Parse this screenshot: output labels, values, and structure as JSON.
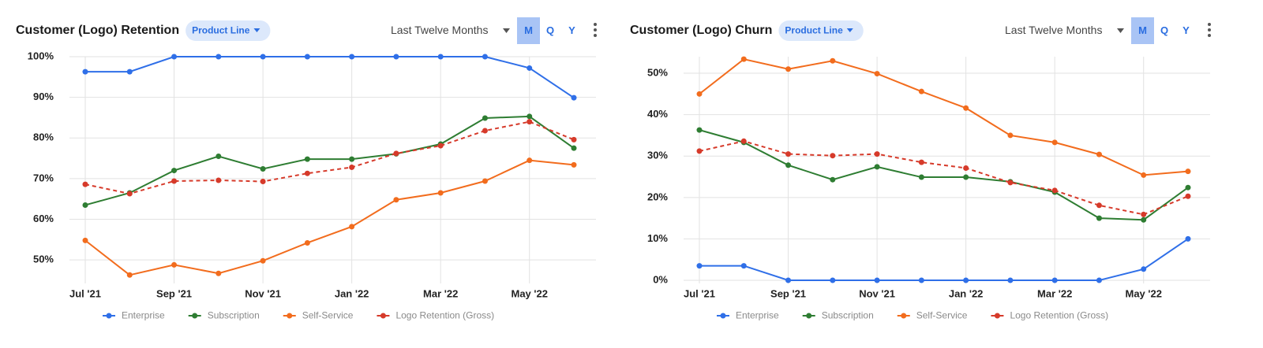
{
  "chart_data": [
    {
      "type": "line",
      "title": "Customer (Logo) Retention",
      "controls": {
        "filter": "Product Line",
        "period": "Last Twelve Months",
        "intervals": [
          "M",
          "Q",
          "Y"
        ]
      },
      "categories": [
        "Jul '21",
        null,
        "Sep '21",
        null,
        "Nov '21",
        null,
        "Jan '22",
        null,
        "Mar '22",
        null,
        "May '22",
        null
      ],
      "ylim": [
        45,
        100
      ],
      "yticks": [
        {
          "value": 50,
          "label": "50%"
        },
        {
          "value": 60,
          "label": "60%"
        },
        {
          "value": 70,
          "label": "70%"
        },
        {
          "value": 80,
          "label": "80%"
        },
        {
          "value": 90,
          "label": "90%"
        },
        {
          "value": 100,
          "label": "100%"
        }
      ],
      "grid": true,
      "series": [
        {
          "name": "Enterprise",
          "color": "#2f6fe8",
          "dashed": false,
          "values": [
            96.3,
            96.3,
            100,
            100,
            100,
            100,
            100,
            100,
            100,
            100,
            97.2,
            89.9
          ]
        },
        {
          "name": "Subscription",
          "color": "#2e7d32",
          "dashed": false,
          "values": [
            63.5,
            66.5,
            72,
            75.5,
            72.4,
            74.8,
            74.8,
            76.1,
            78.5,
            84.9,
            85.3,
            77.5
          ]
        },
        {
          "name": "Self-Service",
          "color": "#f26c1d",
          "dashed": false,
          "values": [
            54.8,
            46.3,
            48.8,
            46.7,
            49.8,
            54.2,
            58.2,
            64.8,
            66.5,
            69.4,
            74.5,
            73.4
          ]
        },
        {
          "name": "Logo Retention (Gross)",
          "color": "#d63a2a",
          "dashed": true,
          "values": [
            68.6,
            66.3,
            69.4,
            69.6,
            69.3,
            71.3,
            72.8,
            76.2,
            78.1,
            81.8,
            84.0,
            79.6
          ]
        }
      ]
    },
    {
      "type": "line",
      "title": "Customer (Logo) Churn",
      "controls": {
        "filter": "Product Line",
        "period": "Last Twelve Months",
        "intervals": [
          "M",
          "Q",
          "Y"
        ]
      },
      "categories": [
        "Jul '21",
        null,
        "Sep '21",
        null,
        "Nov '21",
        null,
        "Jan '22",
        null,
        "Mar '22",
        null,
        "May '22",
        null
      ],
      "ylim": [
        0,
        54
      ],
      "yticks": [
        {
          "value": 0,
          "label": "0%"
        },
        {
          "value": 10,
          "label": "10%"
        },
        {
          "value": 20,
          "label": "20%"
        },
        {
          "value": 30,
          "label": "30%"
        },
        {
          "value": 40,
          "label": "40%"
        },
        {
          "value": 50,
          "label": "50%"
        }
      ],
      "grid": true,
      "series": [
        {
          "name": "Enterprise",
          "color": "#2f6fe8",
          "dashed": false,
          "values": [
            3.5,
            3.5,
            0,
            0,
            0,
            0,
            0,
            0,
            0,
            0,
            2.7,
            10
          ]
        },
        {
          "name": "Subscription",
          "color": "#2e7d32",
          "dashed": false,
          "values": [
            36.3,
            33.3,
            27.8,
            24.3,
            27.4,
            24.9,
            24.9,
            23.8,
            21.3,
            15,
            14.6,
            22.4
          ]
        },
        {
          "name": "Self-Service",
          "color": "#f26c1d",
          "dashed": false,
          "values": [
            45,
            53.4,
            51,
            53,
            49.9,
            45.6,
            41.6,
            35,
            33.3,
            30.4,
            25.4,
            26.3
          ]
        },
        {
          "name": "Logo Retention (Gross)",
          "color": "#d63a2a",
          "dashed": true,
          "values": [
            31.2,
            33.6,
            30.5,
            30.1,
            30.5,
            28.5,
            27.1,
            23.6,
            21.7,
            18.1,
            15.9,
            20.3
          ]
        }
      ]
    }
  ]
}
